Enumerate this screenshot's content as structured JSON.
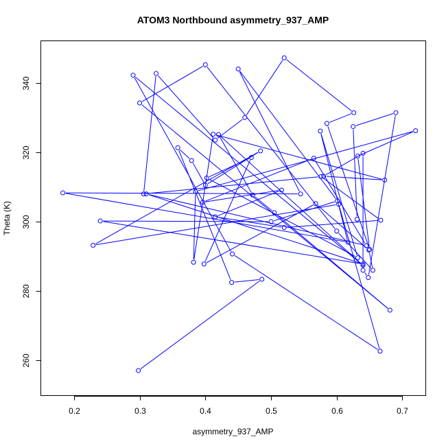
{
  "chart_data": {
    "type": "line",
    "title": "ATOM3 Northbound asymmetry_937_AMP",
    "xlabel": "asymmetry_937_AMP",
    "ylabel": "Theta (K)",
    "xlim": [
      0.15,
      0.735
    ],
    "ylim": [
      250,
      352
    ],
    "xticks": [
      0.2,
      0.3,
      0.4,
      0.5,
      0.6,
      0.7
    ],
    "yticks": [
      260,
      280,
      300,
      320,
      340
    ],
    "xtick_labels": [
      "0.2",
      "0.3",
      "0.4",
      "0.5",
      "0.6",
      "0.7"
    ],
    "ytick_labels": [
      "260",
      "280",
      "300",
      "320",
      "340"
    ],
    "grid": false,
    "legend": "none",
    "marker": "open-circle",
    "color": "#0000ff",
    "series": [
      {
        "x": [
          0.298,
          0.486,
          0.44,
          0.358,
          0.379,
          0.4,
          0.484,
          0.229,
          0.603,
          0.666,
          0.441,
          0.29,
          0.64,
          0.42,
          0.472,
          0.505,
          0.681,
          0.3,
          0.4,
          0.6,
          0.655,
          0.649,
          0.568,
          0.398,
          0.47,
          0.402,
          0.632,
          0.575,
          0.617,
          0.183,
          0.545,
          0.45,
          0.601,
          0.5,
          0.24,
          0.64,
          0.31,
          0.645,
          0.565,
          0.396,
          0.516,
          0.415,
          0.52,
          0.667,
          0.576,
          0.306,
          0.325,
          0.415,
          0.46,
          0.52,
          0.626,
          0.585,
          0.65,
          0.632,
          0.72,
          0.385,
          0.382,
          0.412,
          0.673,
          0.58,
          0.64,
          0.64,
          0.648,
          0.69,
          0.625,
          0.631
        ],
        "y": [
          257.1,
          283.4,
          282.5,
          321.3,
          317.6,
          310.5,
          320.4,
          293.2,
          305.0,
          262.7,
          290.7,
          342.2,
          287.4,
          325.1,
          307.7,
          302.6,
          274.5,
          334.2,
          345.2,
          297.3,
          286.0,
          291.8,
          305.2,
          287.8,
          318.5,
          312.6,
          289.6,
          326.1,
          294.1,
          308.3,
          308.0,
          344.0,
          306.0,
          300.0,
          300.2,
          287.8,
          308.0,
          293.1,
          318.3,
          305.6,
          309.1,
          301.4,
          298.3,
          300.4,
          313.0,
          308.0,
          342.7,
          323.5,
          330.0,
          347.2,
          331.4,
          328.3,
          292.0,
          318.9,
          326.2,
          308.7,
          288.3,
          325.2,
          312.0,
          313.1,
          319.7,
          286.0,
          283.9,
          331.4,
          327.4,
          300.7
        ]
      }
    ]
  }
}
